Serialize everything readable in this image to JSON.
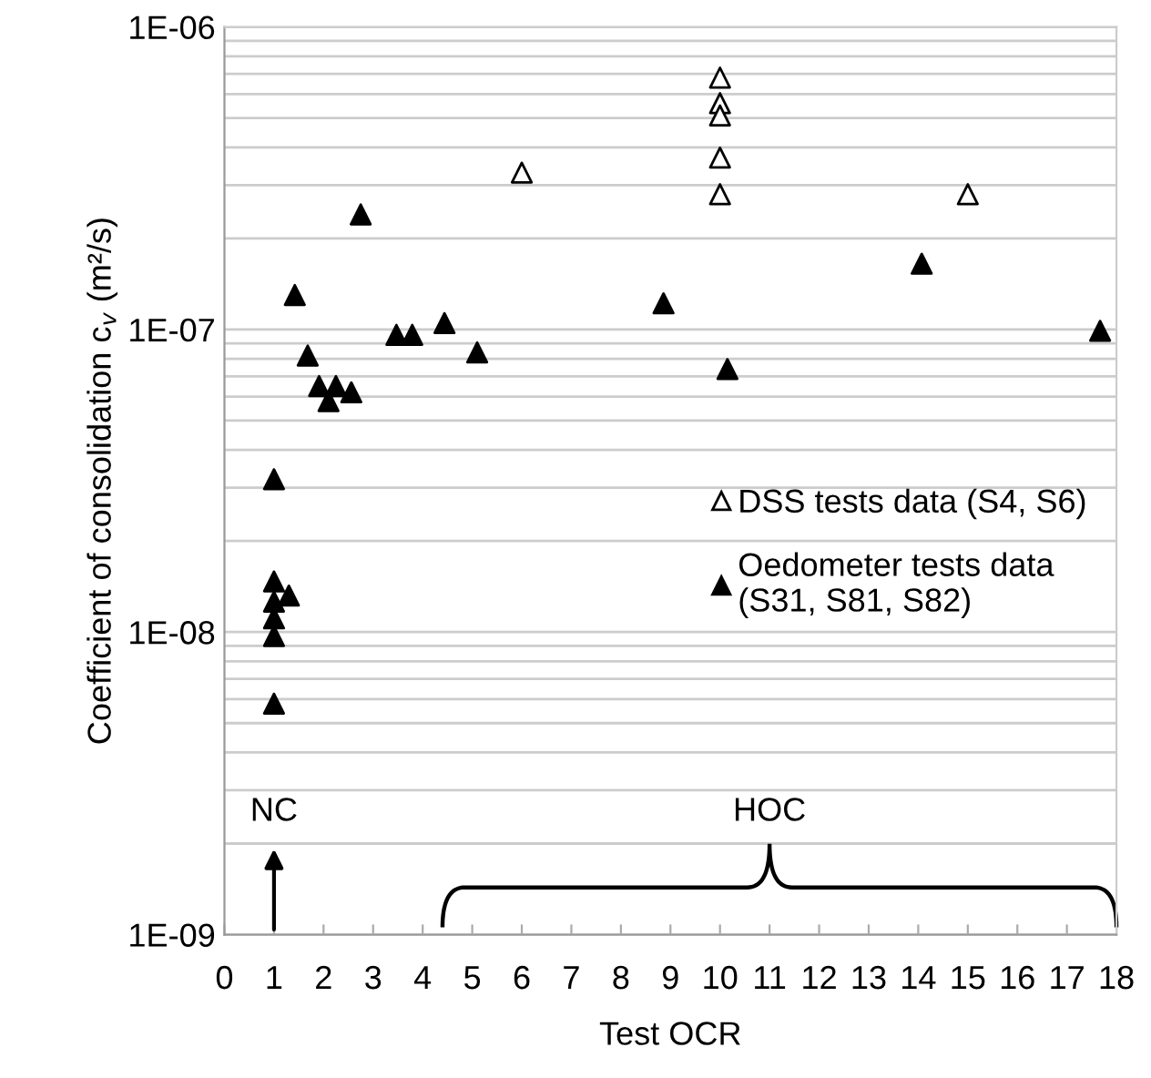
{
  "chart_data": {
    "type": "scatter",
    "xlabel": "Test OCR",
    "ylabel": "Coefficient of consolidation c$_{v}$ (m²/s)",
    "log": "y",
    "grid": "y",
    "legend": "right",
    "xlim": [
      0,
      18
    ],
    "xticks": [
      0,
      1,
      2,
      3,
      4,
      5,
      6,
      7,
      8,
      9,
      10,
      11,
      12,
      13,
      14,
      15,
      16,
      17,
      18
    ],
    "ylim": [
      1e-09,
      1e-06
    ],
    "yticks": [
      {
        "value": 1e-09,
        "label": "1E-09"
      },
      {
        "value": 1e-08,
        "label": "1E-08"
      },
      {
        "value": 1e-07,
        "label": "1E-07"
      },
      {
        "value": 1e-06,
        "label": "1E-06"
      }
    ],
    "marker": "triangle",
    "series": [
      {
        "name": "DSS tests data (S4, S6)",
        "color": "#ffffff",
        "x": [
          6,
          10,
          10,
          10,
          10,
          10,
          15
        ],
        "values": [
          3.3e-07,
          6.8e-07,
          5.6e-07,
          5.1e-07,
          3.7e-07,
          2.8e-07,
          2.8e-07
        ]
      },
      {
        "name": "Oedometer tests data\n(S31, S81, S82)",
        "color": "#000000",
        "x": [
          2.75,
          1.42,
          1.68,
          1.91,
          2.1,
          2.25,
          2.56,
          3.47,
          3.79,
          4.44,
          5.1,
          1,
          1,
          1.3,
          1,
          1,
          1,
          1,
          14.07,
          8.86,
          10.15,
          17.67
        ],
        "values": [
          2.4e-07,
          1.3e-07,
          8.2e-08,
          6.5e-08,
          5.8e-08,
          6.5e-08,
          6.2e-08,
          9.6e-08,
          9.6e-08,
          1.05e-07,
          8.4e-08,
          3.2e-08,
          1.47e-08,
          1.32e-08,
          1.26e-08,
          1.11e-08,
          9.7e-09,
          5.8e-09,
          1.65e-07,
          1.22e-07,
          7.4e-08,
          9.9e-08
        ]
      }
    ],
    "annotations": [
      "NC",
      "HOC"
    ]
  }
}
